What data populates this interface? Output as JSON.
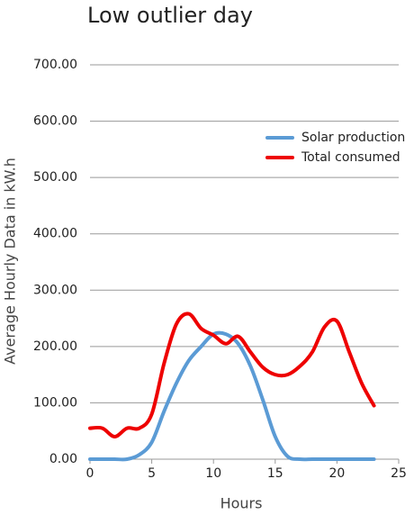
{
  "chart_data": {
    "type": "line",
    "title": "Low outlier day",
    "x_label": "Hours",
    "y_label": "Average Hourly Data in kW.h",
    "x": [
      0,
      1,
      2,
      3,
      4,
      5,
      6,
      7,
      8,
      9,
      10,
      11,
      12,
      13,
      14,
      15,
      16,
      17,
      18,
      19,
      20,
      21,
      22,
      23
    ],
    "series": [
      {
        "name": "Solar production",
        "color": "#5b9bd5",
        "values": [
          0,
          0,
          0,
          0,
          8,
          30,
          85,
          135,
          175,
          200,
          222,
          222,
          205,
          165,
          105,
          40,
          5,
          0,
          0,
          0,
          0,
          0,
          0,
          0
        ]
      },
      {
        "name": "Total consumed",
        "color": "#ee0000",
        "values": [
          55,
          55,
          40,
          55,
          55,
          80,
          170,
          240,
          258,
          232,
          220,
          205,
          218,
          190,
          163,
          150,
          150,
          165,
          190,
          235,
          245,
          190,
          135,
          95
        ]
      }
    ],
    "xlim": [
      0,
      25
    ],
    "xticks": [
      0,
      5,
      10,
      15,
      20,
      25
    ],
    "ylim": [
      0,
      700
    ],
    "yticks": [
      {
        "value": 0,
        "label": "0.00"
      },
      {
        "value": 100,
        "label": "100.00"
      },
      {
        "value": 200,
        "label": "200.00"
      },
      {
        "value": 300,
        "label": "300.00"
      },
      {
        "value": 400,
        "label": "400.00"
      },
      {
        "value": 500,
        "label": "500.00"
      },
      {
        "value": 600,
        "label": "600.00"
      },
      {
        "value": 700,
        "label": "700.00"
      }
    ],
    "grid": true,
    "legend": "upper right"
  }
}
